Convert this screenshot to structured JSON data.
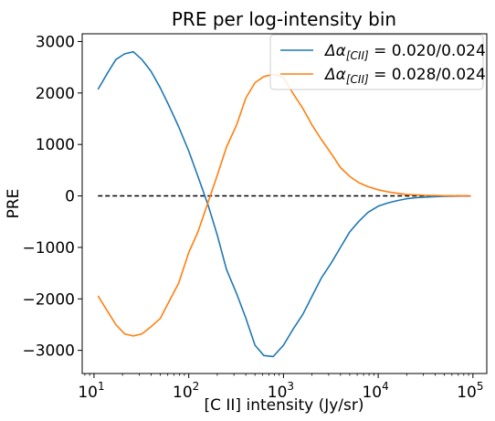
{
  "chart_data": {
    "type": "line",
    "title": "PRE per log-intensity bin",
    "xlabel": "[C II] intensity (Jy/sr)",
    "ylabel": "PRE",
    "xscale": "log",
    "xlim": [
      7.5,
      140000
    ],
    "ylim": [
      -3450,
      3150
    ],
    "xticks": [
      {
        "base": "10",
        "exp": "1",
        "value": 10
      },
      {
        "base": "10",
        "exp": "2",
        "value": 100
      },
      {
        "base": "10",
        "exp": "3",
        "value": 1000
      },
      {
        "base": "10",
        "exp": "4",
        "value": 10000
      },
      {
        "base": "10",
        "exp": "5",
        "value": 100000
      }
    ],
    "yticks": [
      {
        "label": "3000",
        "value": 3000
      },
      {
        "label": "2000",
        "value": 2000
      },
      {
        "label": "1000",
        "value": 1000
      },
      {
        "label": "0",
        "value": 0
      },
      {
        "label": "−1000",
        "value": -1000
      },
      {
        "label": "−2000",
        "value": -2000
      },
      {
        "label": "−3000",
        "value": -3000
      }
    ],
    "grid": false,
    "legend_position": "top-right",
    "reference_line": {
      "y": 0,
      "style": "dashed",
      "color": "#000000",
      "x_range": [
        11,
        95000
      ]
    },
    "x": [
      11,
      14,
      17,
      21,
      26,
      32,
      40,
      50,
      62,
      78,
      100,
      125,
      160,
      200,
      250,
      320,
      400,
      500,
      620,
      780,
      1000,
      1250,
      1600,
      2000,
      2500,
      3200,
      4000,
      5000,
      6200,
      7800,
      10000,
      12500,
      16000,
      20000,
      25000,
      32000,
      40000,
      50000,
      62000,
      78000,
      95000
    ],
    "series": [
      {
        "name_prefix": "Δα",
        "name_subscript": "[CII]",
        "name_suffix": " = 0.020/0.024",
        "color": "#1f77b4",
        "values": [
          2070,
          2400,
          2650,
          2760,
          2800,
          2650,
          2420,
          2100,
          1750,
          1350,
          870,
          380,
          -180,
          -760,
          -1430,
          -1900,
          -2370,
          -2900,
          -3100,
          -3120,
          -2900,
          -2600,
          -2300,
          -1950,
          -1600,
          -1300,
          -1000,
          -700,
          -500,
          -320,
          -200,
          -140,
          -90,
          -55,
          -35,
          -22,
          -14,
          -8,
          -5,
          -3,
          -2
        ]
      },
      {
        "name_prefix": "Δα",
        "name_subscript": "[CII]",
        "name_suffix": " = 0.028/0.024",
        "color": "#ff7f0e",
        "values": [
          -1940,
          -2250,
          -2500,
          -2680,
          -2720,
          -2680,
          -2540,
          -2380,
          -2050,
          -1700,
          -1100,
          -700,
          -120,
          400,
          950,
          1380,
          1900,
          2200,
          2320,
          2360,
          2300,
          2000,
          1700,
          1380,
          1100,
          820,
          550,
          380,
          260,
          180,
          120,
          80,
          50,
          30,
          20,
          12,
          8,
          5,
          3,
          2,
          1
        ]
      }
    ]
  }
}
